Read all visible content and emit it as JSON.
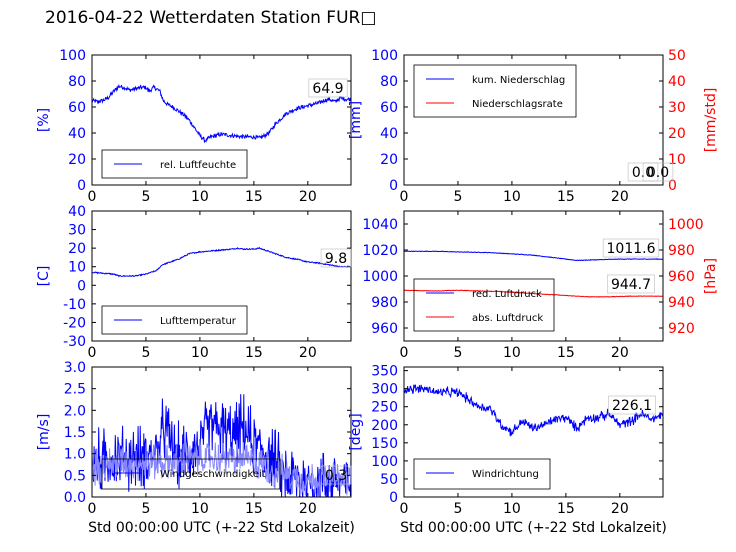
{
  "title": "2016-04-22 Wetterdaten Station FUR□",
  "xlabel": "Std 00:00:00 UTC (+-22 Std Lokalzeit)",
  "colors": {
    "blue": "#0000ff",
    "red": "#ff0000",
    "axis": "#000000"
  },
  "chart_data": [
    {
      "type": "line",
      "xlim": [
        0,
        24
      ],
      "xticks": [
        0,
        5,
        10,
        15,
        20
      ],
      "ylim": [
        0,
        100
      ],
      "yticks": [
        0,
        20,
        40,
        60,
        80,
        100
      ],
      "ylabel": "[%]",
      "ylabel_color": "#0000ff",
      "legend": [
        {
          "name": "rel. Luftfeuchte",
          "color": "#0000ff"
        }
      ],
      "legend_loc": "lower-left",
      "annotations": [
        "64.9"
      ],
      "series": [
        {
          "name": "rel. Luftfeuchte",
          "color": "#0000ff",
          "noise": 1.5,
          "points": [
            [
              0,
              65
            ],
            [
              0.5,
              64
            ],
            [
              1,
              65
            ],
            [
              1.5,
              67
            ],
            [
              2,
              72
            ],
            [
              2.5,
              76
            ],
            [
              3,
              75
            ],
            [
              3.5,
              73
            ],
            [
              4,
              74
            ],
            [
              4.5,
              75
            ],
            [
              5,
              75
            ],
            [
              5.3,
              72
            ],
            [
              5.7,
              75
            ],
            [
              6,
              74
            ],
            [
              6.3,
              72
            ],
            [
              6.6,
              65
            ],
            [
              7,
              62
            ],
            [
              7.5,
              60
            ],
            [
              8,
              57
            ],
            [
              8.5,
              54
            ],
            [
              9,
              50
            ],
            [
              9.5,
              44
            ],
            [
              10,
              38
            ],
            [
              10.5,
              34
            ],
            [
              11,
              37
            ],
            [
              12,
              39
            ],
            [
              13,
              38
            ],
            [
              14,
              37
            ],
            [
              15,
              37
            ],
            [
              15.5,
              36
            ],
            [
              16,
              38
            ],
            [
              16.5,
              41
            ],
            [
              17,
              47
            ],
            [
              17.5,
              51
            ],
            [
              18,
              55
            ],
            [
              18.5,
              57
            ],
            [
              19,
              59
            ],
            [
              19.5,
              60
            ],
            [
              20,
              61
            ],
            [
              20.5,
              62
            ],
            [
              21,
              63
            ],
            [
              21.5,
              65
            ],
            [
              22,
              66
            ],
            [
              22.5,
              64
            ],
            [
              23,
              67
            ],
            [
              23.5,
              66
            ],
            [
              24,
              66
            ]
          ]
        }
      ]
    },
    {
      "type": "line",
      "xlim": [
        0,
        24
      ],
      "xticks": [
        0,
        5,
        10,
        15,
        20
      ],
      "ylim": [
        0,
        100
      ],
      "yticks": [
        0,
        20,
        40,
        60,
        80,
        100
      ],
      "ylabel": "[mm]",
      "ylabel_color": "#0000ff",
      "ylim2": [
        0,
        50
      ],
      "yticks2": [
        0,
        10,
        20,
        30,
        40,
        50
      ],
      "ylabel2": "[mm/std]",
      "ylabel2_color": "#ff0000",
      "legend": [
        {
          "name": "kum. Niederschlag",
          "color": "#0000ff"
        },
        {
          "name": "Niederschlagsrate",
          "color": "#ff0000"
        }
      ],
      "legend_loc": "upper-left",
      "annotations": [
        "0.0",
        "0.0"
      ],
      "series": [
        {
          "name": "kum. Niederschlag",
          "color": "#0000ff",
          "axis": "left",
          "noise": 0,
          "points": [
            [
              0,
              0
            ],
            [
              24,
              0
            ]
          ]
        },
        {
          "name": "Niederschlagsrate",
          "color": "#ff0000",
          "axis": "right",
          "noise": 0,
          "points": [
            [
              0,
              0
            ],
            [
              24,
              0
            ]
          ]
        }
      ]
    },
    {
      "type": "line",
      "xlim": [
        0,
        24
      ],
      "xticks": [
        0,
        5,
        10,
        15,
        20
      ],
      "ylim": [
        -30,
        40
      ],
      "yticks": [
        -30,
        -20,
        -10,
        0,
        10,
        20,
        30,
        40
      ],
      "ylabel": "[C]",
      "ylabel_color": "#0000ff",
      "legend": [
        {
          "name": "Lufttemperatur",
          "color": "#0000ff"
        }
      ],
      "legend_loc": "lower-left",
      "annotations": [
        "9.8"
      ],
      "series": [
        {
          "name": "Lufttemperatur",
          "color": "#0000ff",
          "noise": 0.3,
          "points": [
            [
              0,
              7
            ],
            [
              1,
              6.5
            ],
            [
              2,
              6
            ],
            [
              2.5,
              5
            ],
            [
              3,
              5
            ],
            [
              4,
              5
            ],
            [
              5,
              6
            ],
            [
              6,
              8
            ],
            [
              6.5,
              11
            ],
            [
              7,
              12
            ],
            [
              8,
              14
            ],
            [
              9,
              17
            ],
            [
              10,
              18
            ],
            [
              11,
              18.5
            ],
            [
              12,
              19
            ],
            [
              13,
              19.5
            ],
            [
              13.5,
              20
            ],
            [
              14,
              19.5
            ],
            [
              15,
              19.5
            ],
            [
              15.5,
              20
            ],
            [
              16,
              19
            ],
            [
              17,
              17
            ],
            [
              18,
              15
            ],
            [
              19,
              14
            ],
            [
              20,
              12.5
            ],
            [
              21,
              12
            ],
            [
              22,
              11
            ],
            [
              23,
              10
            ],
            [
              24,
              10
            ]
          ]
        }
      ]
    },
    {
      "type": "line",
      "xlim": [
        0,
        24
      ],
      "xticks": [
        0,
        5,
        10,
        15,
        20
      ],
      "ylim": [
        950,
        1050
      ],
      "yticks": [
        960,
        980,
        1000,
        1020,
        1040
      ],
      "ylim2": [
        910,
        1010
      ],
      "yticks2": [
        920,
        940,
        960,
        980,
        1000
      ],
      "ylabel2": "[hPa]",
      "ylabel2_color": "#ff0000",
      "legend": [
        {
          "name": "red. Luftdruck",
          "color": "#0000ff"
        },
        {
          "name": "abs. Luftdruck",
          "color": "#ff0000"
        }
      ],
      "legend_loc": "lower-left",
      "annotations": [
        "1011.6",
        "944.7"
      ],
      "series": [
        {
          "name": "red. Luftdruck",
          "color": "#0000ff",
          "axis": "left",
          "noise": 0.2,
          "points": [
            [
              0,
              1019
            ],
            [
              3,
              1019
            ],
            [
              5,
              1018.5
            ],
            [
              8,
              1018
            ],
            [
              10,
              1017
            ],
            [
              12,
              1016
            ],
            [
              14,
              1014
            ],
            [
              16,
              1012
            ],
            [
              18,
              1012.5
            ],
            [
              20,
              1013
            ],
            [
              22,
              1013
            ],
            [
              24,
              1013
            ]
          ]
        },
        {
          "name": "abs. Luftdruck",
          "color": "#ff0000",
          "axis": "right",
          "noise": 0.2,
          "points": [
            [
              0,
              949
            ],
            [
              3,
              948.5
            ],
            [
              5,
              949
            ],
            [
              7,
              948.5
            ],
            [
              9,
              948
            ],
            [
              11,
              947
            ],
            [
              13,
              946
            ],
            [
              15,
              945
            ],
            [
              17,
              944
            ],
            [
              19,
              944
            ],
            [
              21,
              944.5
            ],
            [
              24,
              944.5
            ]
          ]
        }
      ]
    },
    {
      "type": "line",
      "xlim": [
        0,
        24
      ],
      "xticks": [
        0,
        5,
        10,
        15,
        20
      ],
      "ylim": [
        0,
        3.0
      ],
      "yticks": [
        0.0,
        0.5,
        1.0,
        1.5,
        2.0,
        2.5,
        3.0
      ],
      "ylabel": "[m/s]",
      "ylabel_color": "#0000ff",
      "legend": [
        {
          "name": "Windgeschwindigkeit",
          "color": "#0000ff"
        }
      ],
      "legend_loc": "lower-left",
      "annotations": [
        "0.3"
      ],
      "series": [
        {
          "name": "Windgeschwindigkeit",
          "color": "#0000ff",
          "noise": 0.55,
          "points": [
            [
              0,
              0.8
            ],
            [
              2,
              0.9
            ],
            [
              4,
              0.9
            ],
            [
              6,
              1.0
            ],
            [
              6.7,
              1.6
            ],
            [
              8,
              0.9
            ],
            [
              10,
              1.2
            ],
            [
              11,
              1.7
            ],
            [
              13,
              1.4
            ],
            [
              14,
              1.6
            ],
            [
              15,
              1.2
            ],
            [
              16.5,
              1.0
            ],
            [
              17.5,
              0.6
            ],
            [
              19,
              0.4
            ],
            [
              21,
              0.35
            ],
            [
              22.5,
              0.4
            ],
            [
              24,
              0.3
            ]
          ]
        },
        {
          "name": "Windgeschwindigkeit",
          "color": "#8888ff",
          "noise": 0.3,
          "points": [
            [
              0,
              0.7
            ],
            [
              3,
              0.8
            ],
            [
              6,
              0.8
            ],
            [
              8,
              0.8
            ],
            [
              10,
              0.9
            ],
            [
              12,
              0.9
            ],
            [
              14,
              0.9
            ],
            [
              16,
              0.7
            ],
            [
              18,
              0.5
            ],
            [
              20,
              0.4
            ],
            [
              24,
              0.4
            ]
          ]
        }
      ]
    },
    {
      "type": "line",
      "xlim": [
        0,
        24
      ],
      "xticks": [
        0,
        5,
        10,
        15,
        20
      ],
      "ylim": [
        0,
        360
      ],
      "yticks": [
        0,
        50,
        100,
        150,
        200,
        250,
        300,
        350
      ],
      "ylabel": "[deg]",
      "ylabel_color": "#0000ff",
      "legend": [
        {
          "name": "Windrichtung",
          "color": "#0000ff"
        }
      ],
      "legend_loc": "lower-left",
      "annotations": [
        "226.1"
      ],
      "series": [
        {
          "name": "Windrichtung",
          "color": "#0000ff",
          "noise": 10,
          "points": [
            [
              0,
              300
            ],
            [
              2,
              300
            ],
            [
              3,
              290
            ],
            [
              5,
              290
            ],
            [
              6,
              270
            ],
            [
              7,
              250
            ],
            [
              8,
              245
            ],
            [
              9,
              200
            ],
            [
              10,
              180
            ],
            [
              11,
              210
            ],
            [
              12,
              190
            ],
            [
              13,
              200
            ],
            [
              14,
              215
            ],
            [
              15,
              220
            ],
            [
              16,
              190
            ],
            [
              17,
              220
            ],
            [
              18,
              220
            ],
            [
              19,
              230
            ],
            [
              20,
              200
            ],
            [
              21,
              210
            ],
            [
              22,
              230
            ],
            [
              23,
              215
            ],
            [
              24,
              230
            ]
          ]
        }
      ]
    }
  ]
}
